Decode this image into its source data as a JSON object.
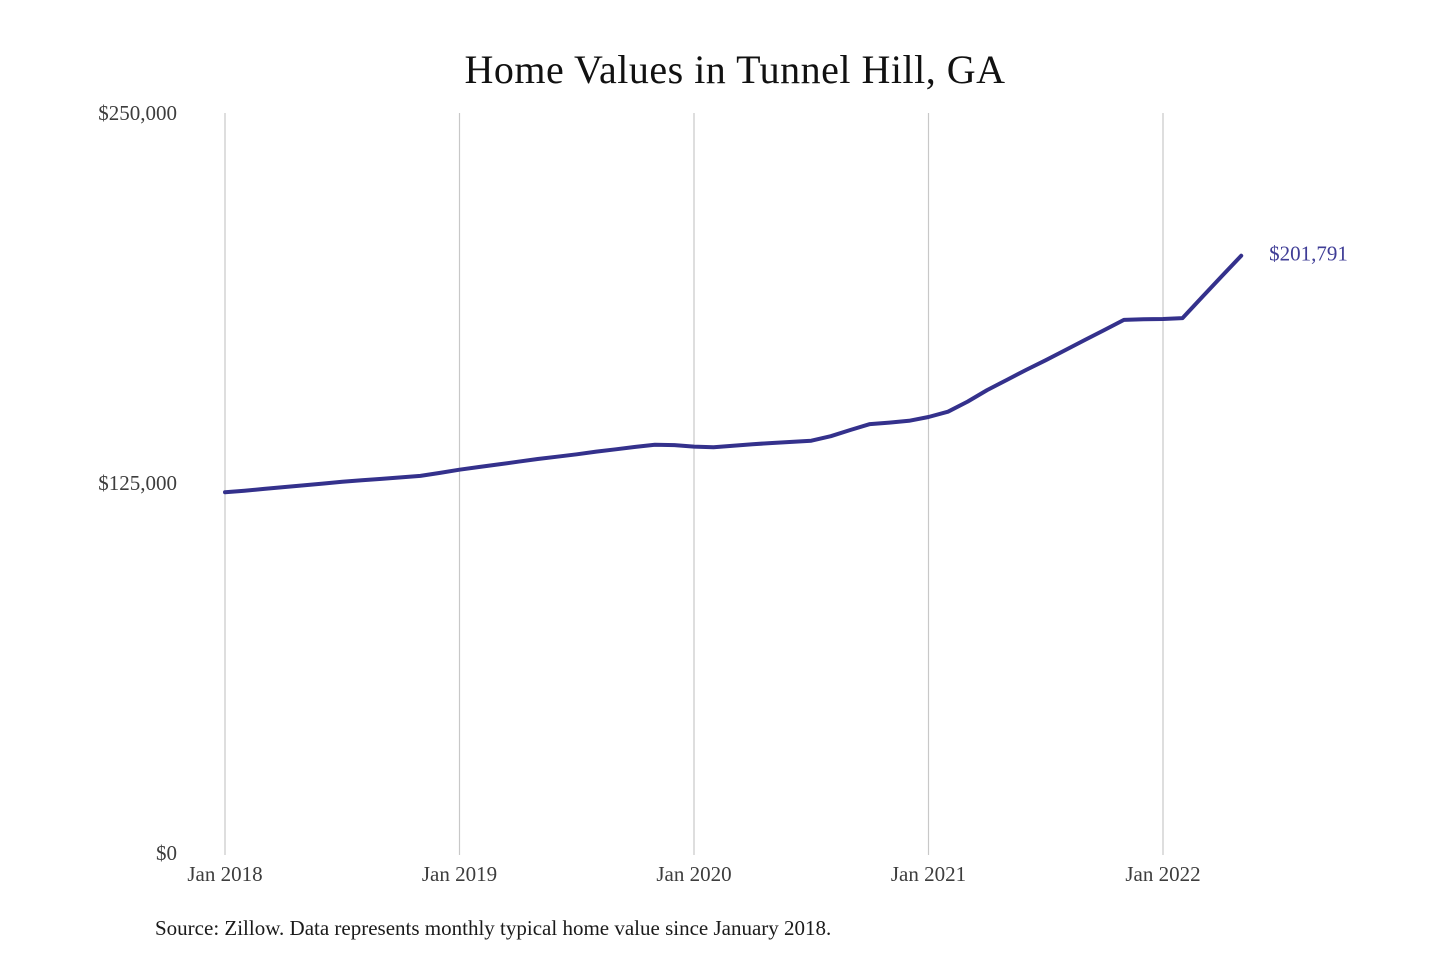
{
  "chart": {
    "title": "Home Values in Tunnel Hill, GA",
    "source_note": "Source: Zillow. Data represents monthly typical home value since January 2018.",
    "end_label": "$201,791",
    "colors": {
      "line": "#34318c",
      "end_label": "#3f3d96",
      "grid": "#c8c8c8",
      "title_text": "#111111",
      "axis_text": "#3d3d3d",
      "source_text": "#1a1a1a",
      "background": "#ffffff"
    }
  },
  "chart_data": {
    "type": "line",
    "title": "Home Values in Tunnel Hill, GA",
    "xlabel": "",
    "ylabel": "",
    "ylim": [
      0,
      250000
    ],
    "grid": "vertical-only",
    "legend": "none",
    "x_unit": "monthly since January 2018",
    "y_ticks": [
      {
        "label": "$250,000",
        "value": 250000
      },
      {
        "label": "$125,000",
        "value": 125000
      },
      {
        "label": "$0",
        "value": 0
      }
    ],
    "x_ticks": [
      {
        "label": "Jan 2018",
        "month_index": 0
      },
      {
        "label": "Jan 2019",
        "month_index": 12
      },
      {
        "label": "Jan 2020",
        "month_index": 24
      },
      {
        "label": "Jan 2021",
        "month_index": 36
      },
      {
        "label": "Jan 2022",
        "month_index": 48
      }
    ],
    "series": [
      {
        "name": "Typical home value",
        "end_label": "$201,791",
        "months": [
          "Jan 2018",
          "Feb 2018",
          "Mar 2018",
          "Apr 2018",
          "May 2018",
          "Jun 2018",
          "Jul 2018",
          "Aug 2018",
          "Sep 2018",
          "Oct 2018",
          "Nov 2018",
          "Dec 2018",
          "Jan 2019",
          "Feb 2019",
          "Mar 2019",
          "Apr 2019",
          "May 2019",
          "Jun 2019",
          "Jul 2019",
          "Aug 2019",
          "Sep 2019",
          "Oct 2019",
          "Nov 2019",
          "Dec 2019",
          "Jan 2020",
          "Feb 2020",
          "Mar 2020",
          "Apr 2020",
          "May 2020",
          "Jun 2020",
          "Jul 2020",
          "Aug 2020",
          "Sep 2020",
          "Oct 2020",
          "Nov 2020",
          "Dec 2020",
          "Jan 2021",
          "Feb 2021",
          "Mar 2021",
          "Apr 2021",
          "May 2021",
          "Jun 2021",
          "Jul 2021",
          "Aug 2021",
          "Sep 2021",
          "Oct 2021",
          "Nov 2021",
          "Dec 2021",
          "Jan 2022",
          "Feb 2022",
          "Mar 2022",
          "Apr 2022",
          "May 2022"
        ],
        "values": [
          121900,
          122400,
          123000,
          123600,
          124200,
          124800,
          125400,
          125900,
          126400,
          126900,
          127400,
          128400,
          129500,
          130400,
          131300,
          132200,
          133100,
          133900,
          134700,
          135600,
          136400,
          137200,
          137900,
          137800,
          137300,
          137100,
          137600,
          138100,
          138500,
          138900,
          139300,
          140800,
          142900,
          144900,
          145400,
          146000,
          147300,
          149100,
          152500,
          156400,
          159800,
          163200,
          166500,
          169900,
          173300,
          176700,
          180100,
          180300,
          180400,
          180700,
          187800,
          194800,
          201791
        ]
      }
    ]
  }
}
